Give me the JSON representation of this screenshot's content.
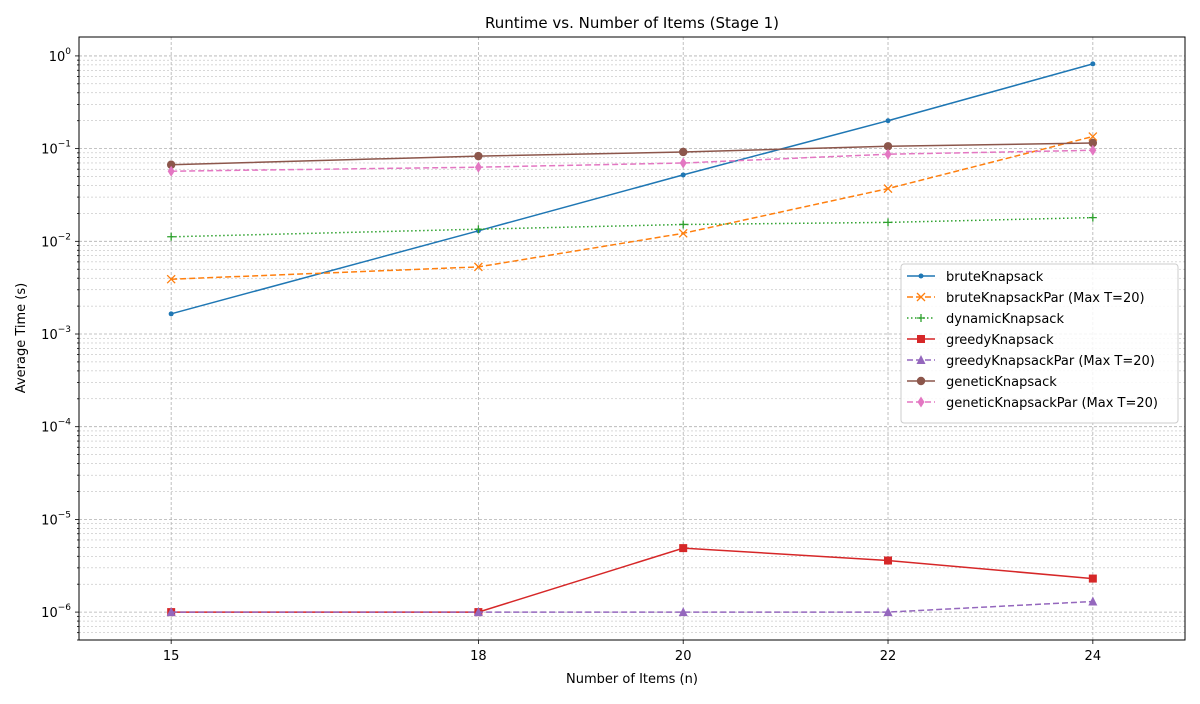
{
  "chart_data": {
    "type": "line",
    "title": "Runtime vs. Number of Items (Stage 1)",
    "xlabel": "Number of Items (n)",
    "ylabel": "Average Time (s)",
    "x": [
      15,
      18,
      20,
      22,
      24
    ],
    "xlim": [
      14.1,
      24.9
    ],
    "yscale": "log",
    "ylim": [
      5e-07,
      1.6
    ],
    "x_ticks": [
      {
        "value": 15,
        "label": "15"
      },
      {
        "value": 18,
        "label": "18"
      },
      {
        "value": 20,
        "label": "20"
      },
      {
        "value": 22,
        "label": "22"
      },
      {
        "value": 24,
        "label": "24"
      }
    ],
    "y_ticks": [
      {
        "value": 1e-06,
        "base": "10",
        "exp": "−6"
      },
      {
        "value": 1e-05,
        "base": "10",
        "exp": "−5"
      },
      {
        "value": 0.0001,
        "base": "10",
        "exp": "−4"
      },
      {
        "value": 0.001,
        "base": "10",
        "exp": "−3"
      },
      {
        "value": 0.01,
        "base": "10",
        "exp": "−2"
      },
      {
        "value": 0.1,
        "base": "10",
        "exp": "−1"
      },
      {
        "value": 1,
        "base": "10",
        "exp": "0"
      }
    ],
    "grid": "major and minor",
    "legend_position": "right",
    "series": [
      {
        "name": "bruteKnapsack",
        "values": [
          0.00165,
          0.013,
          0.052,
          0.2,
          0.82
        ],
        "color": "#1f77b4",
        "dash": "solid",
        "marker": "point"
      },
      {
        "name": "bruteKnapsackPar (Max T=20)",
        "values": [
          0.0039,
          0.0053,
          0.0122,
          0.037,
          0.135
        ],
        "color": "#ff7f0e",
        "dash": "dashed",
        "marker": "x"
      },
      {
        "name": "dynamicKnapsack",
        "values": [
          0.0112,
          0.0135,
          0.0152,
          0.016,
          0.018
        ],
        "color": "#2ca02c",
        "dash": "dotted",
        "marker": "plus"
      },
      {
        "name": "greedyKnapsack",
        "values": [
          1e-06,
          1e-06,
          4.9e-06,
          3.6e-06,
          2.3e-06
        ],
        "color": "#d62728",
        "dash": "solid",
        "marker": "square"
      },
      {
        "name": "greedyKnapsackPar (Max T=20)",
        "values": [
          1e-06,
          1e-06,
          1e-06,
          1e-06,
          1.3e-06
        ],
        "color": "#9467bd",
        "dash": "dashed",
        "marker": "triangle"
      },
      {
        "name": "geneticKnapsack",
        "values": [
          0.067,
          0.083,
          0.092,
          0.106,
          0.115
        ],
        "color": "#8c564b",
        "dash": "solid",
        "marker": "circle"
      },
      {
        "name": "geneticKnapsackPar (Max T=20)",
        "values": [
          0.057,
          0.063,
          0.07,
          0.087,
          0.096
        ],
        "color": "#e377c2",
        "dash": "dashed",
        "marker": "diamond"
      }
    ]
  }
}
